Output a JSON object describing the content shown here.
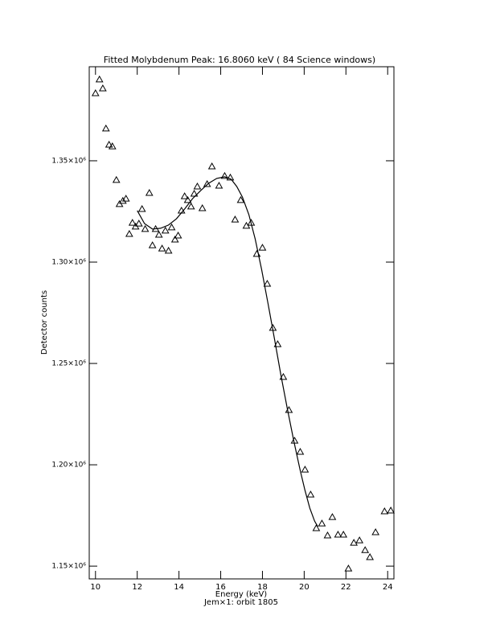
{
  "chart_data": {
    "type": "scatter",
    "title": "Fitted Molybdenum Peak:        16.8060 keV (      84 Science windows)",
    "x_label": "Energy (keV)",
    "subtitle": "Jem×1: orbit 1805",
    "y_label": "Detector counts",
    "xlim": [
      9.7,
      24.3
    ],
    "ylim": [
      1143700,
      1396400
    ],
    "xticks": [
      10,
      12,
      14,
      16,
      18,
      20,
      22,
      24
    ],
    "yticks": [
      {
        "value": 1150000,
        "label": "1.15×10⁶"
      },
      {
        "value": 1200000,
        "label": "1.20×10⁶"
      },
      {
        "value": 1250000,
        "label": "1.25×10⁶"
      },
      {
        "value": 1300000,
        "label": "1.30×10⁶"
      },
      {
        "value": 1350000,
        "label": "1.35×10⁶"
      }
    ],
    "grid": false,
    "series": [
      {
        "type": "scatter",
        "marker": "triangle",
        "color": "#000000",
        "x": [
          10.0,
          10.19,
          10.35,
          10.5,
          10.65,
          10.81,
          11.0,
          11.15,
          11.31,
          11.46,
          11.62,
          11.77,
          11.92,
          12.08,
          12.23,
          12.38,
          12.58,
          12.73,
          12.88,
          13.04,
          13.19,
          13.35,
          13.5,
          13.65,
          13.81,
          13.96,
          14.12,
          14.27,
          14.42,
          14.58,
          14.73,
          14.88,
          15.12,
          15.35,
          15.58,
          15.92,
          16.19,
          16.46,
          16.69,
          16.96,
          17.23,
          17.46,
          17.73,
          18.0,
          18.23,
          18.5,
          18.73,
          19.0,
          19.27,
          19.54,
          19.81,
          20.04,
          20.31,
          20.58,
          20.85,
          21.12,
          21.35,
          21.62,
          21.88,
          22.12,
          22.38,
          22.65,
          22.92,
          23.15,
          23.42,
          23.85,
          24.15
        ],
        "values": [
          1383300,
          1390100,
          1385700,
          1365900,
          1357900,
          1357100,
          1340500,
          1328600,
          1330200,
          1331300,
          1313900,
          1319400,
          1317500,
          1319000,
          1326200,
          1316300,
          1334100,
          1308300,
          1316300,
          1313500,
          1306700,
          1315500,
          1305600,
          1317100,
          1311100,
          1313100,
          1325400,
          1332500,
          1330600,
          1327400,
          1333700,
          1337300,
          1326600,
          1338500,
          1347200,
          1337700,
          1342500,
          1341700,
          1321000,
          1330600,
          1317900,
          1319400,
          1304000,
          1307100,
          1289300,
          1267500,
          1259500,
          1243300,
          1227000,
          1211900,
          1206400,
          1197600,
          1185300,
          1168700,
          1171000,
          1165100,
          1174200,
          1165500,
          1165500,
          1148800,
          1161500,
          1162700,
          1157900,
          1154400,
          1166700,
          1177000,
          1177400
        ]
      },
      {
        "type": "line",
        "color": "#000000",
        "x": [
          12.0,
          12.35,
          12.73,
          13.12,
          13.5,
          13.88,
          14.27,
          14.65,
          15.04,
          15.42,
          15.81,
          16.19,
          16.5,
          16.77,
          17.04,
          17.35,
          17.65,
          17.96,
          18.27,
          18.58,
          18.88,
          19.19,
          19.5,
          19.81,
          20.04,
          20.27,
          20.5,
          20.65
        ],
        "values": [
          1325400,
          1319000,
          1316300,
          1316700,
          1318300,
          1321400,
          1326200,
          1331300,
          1335300,
          1338900,
          1341300,
          1342100,
          1340900,
          1337300,
          1332100,
          1323400,
          1311500,
          1296400,
          1279400,
          1261900,
          1244500,
          1227800,
          1211900,
          1197200,
          1187300,
          1178600,
          1172200,
          1169500
        ]
      }
    ]
  }
}
